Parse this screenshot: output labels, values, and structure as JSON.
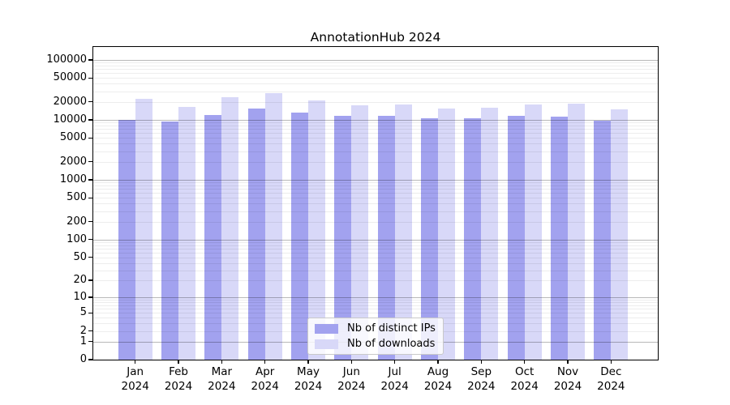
{
  "title": "AnnotationHub 2024",
  "colors": {
    "ips_bar": "#a2a2ef",
    "downloads_bar": "#d8d8f8",
    "grid_major": "rgba(0,0,0,0.28)",
    "grid_minor": "rgba(0,0,0,0.07)",
    "axis": "#000000",
    "legend_border": "#c9c9c9"
  },
  "legend": {
    "items": [
      {
        "label": "Nb of distinct IPs",
        "color_key": "ips_bar"
      },
      {
        "label": "Nb of downloads",
        "color_key": "downloads_bar"
      }
    ]
  },
  "chart_data": {
    "type": "bar",
    "title": "AnnotationHub 2024",
    "categories": [
      "Jan 2024",
      "Feb 2024",
      "Mar 2024",
      "Apr 2024",
      "May 2024",
      "Jun 2024",
      "Jul 2024",
      "Aug 2024",
      "Sep 2024",
      "Oct 2024",
      "Nov 2024",
      "Dec 2024"
    ],
    "series": [
      {
        "name": "Nb of distinct IPs",
        "values": [
          10000,
          9400,
          12200,
          15700,
          13200,
          11700,
          11700,
          10500,
          10800,
          11600,
          11300,
          9700
        ]
      },
      {
        "name": "Nb of downloads",
        "values": [
          22700,
          16400,
          23600,
          27500,
          21000,
          17700,
          17800,
          15400,
          16000,
          18100,
          18800,
          14800
        ]
      }
    ],
    "xlabel": "",
    "ylabel": "",
    "yscale": "log1p",
    "yticks": [
      0,
      1,
      2,
      5,
      10,
      20,
      50,
      100,
      200,
      500,
      1000,
      2000,
      5000,
      10000,
      20000,
      50000,
      100000
    ],
    "ylim": [
      0,
      160000
    ],
    "grid": true,
    "legend_position": "lower center (inside axes)"
  }
}
